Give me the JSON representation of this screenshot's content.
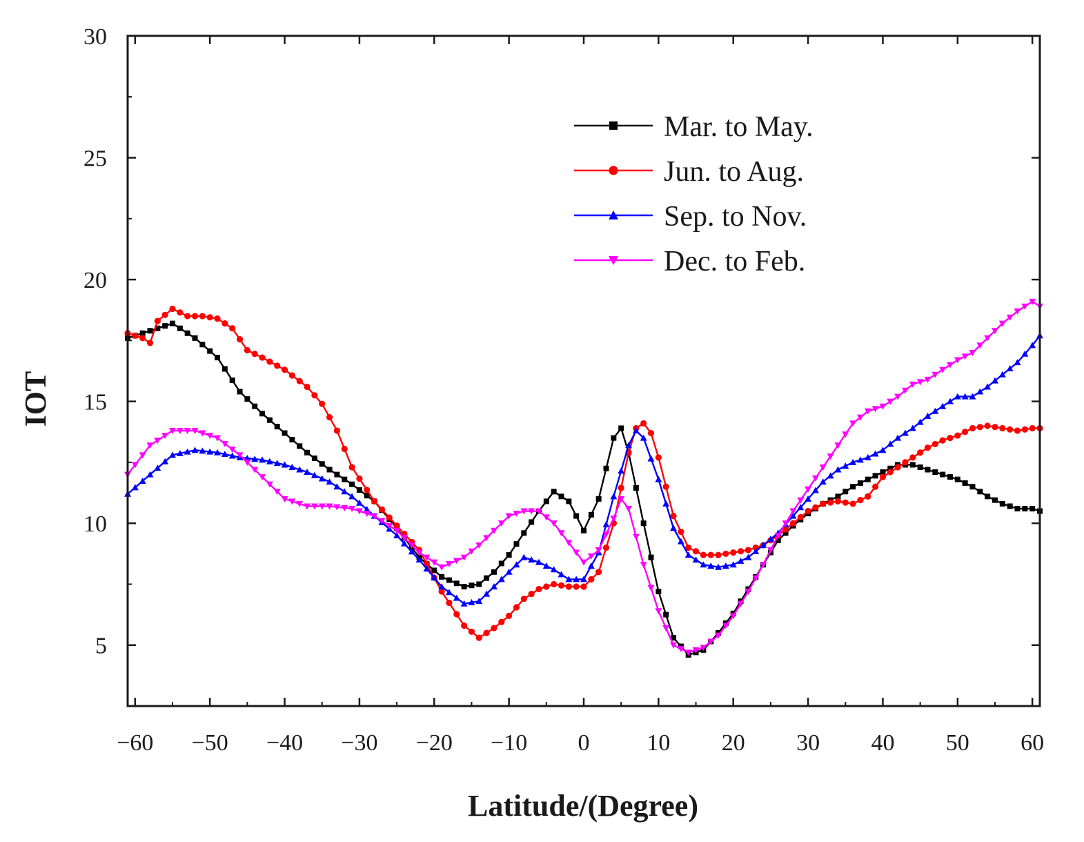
{
  "chart_data": {
    "type": "line",
    "title": "",
    "xlabel": "Latitude/(Degree)",
    "ylabel": "IOT",
    "xlim": [
      -61,
      61
    ],
    "ylim": [
      2.5,
      30
    ],
    "xticks": [
      -60,
      -50,
      -40,
      -30,
      -20,
      -10,
      0,
      10,
      20,
      30,
      40,
      50,
      60
    ],
    "xtick_labels": [
      "−60",
      "−50",
      "−40",
      "−30",
      "−20",
      "−10",
      "0",
      "10",
      "20",
      "30",
      "40",
      "50",
      "60"
    ],
    "yticks": [
      5,
      10,
      15,
      20,
      25,
      30
    ],
    "ytick_labels": [
      "5",
      "10",
      "15",
      "20",
      "25",
      "30"
    ],
    "grid": false,
    "legend_position": "top-right",
    "series": [
      {
        "name": "Mar. to May.",
        "color": "#000000",
        "marker": "square",
        "x": [
          -61,
          -58,
          -55,
          -52,
          -49,
          -46,
          -43,
          -40,
          -37,
          -34,
          -31,
          -28,
          -25,
          -22,
          -19,
          -16,
          -14,
          -12,
          -10,
          -8,
          -6,
          -4,
          -2,
          0,
          2,
          4,
          5,
          6,
          8,
          10,
          12,
          14,
          16,
          18,
          20,
          22,
          24,
          26,
          28,
          30,
          32,
          34,
          36,
          38,
          40,
          42,
          44,
          46,
          48,
          50,
          52,
          54,
          56,
          58,
          60,
          61
        ],
        "y": [
          17.6,
          17.9,
          18.2,
          17.6,
          16.8,
          15.4,
          14.5,
          13.7,
          12.9,
          12.2,
          11.6,
          10.9,
          9.8,
          8.6,
          7.8,
          7.4,
          7.5,
          8.0,
          8.7,
          9.6,
          10.5,
          11.3,
          10.9,
          9.7,
          11.0,
          13.5,
          13.9,
          12.9,
          10.0,
          7.2,
          5.3,
          4.6,
          4.8,
          5.5,
          6.3,
          7.3,
          8.3,
          9.3,
          9.9,
          10.4,
          10.8,
          11.1,
          11.5,
          11.8,
          12.1,
          12.4,
          12.4,
          12.2,
          12.0,
          11.8,
          11.5,
          11.1,
          10.8,
          10.6,
          10.6,
          10.5
        ]
      },
      {
        "name": "Jun. to Aug.",
        "color": "#ff0000",
        "marker": "circle",
        "x": [
          -61,
          -59,
          -58,
          -57,
          -55,
          -53,
          -51,
          -49,
          -47,
          -45,
          -43,
          -40,
          -37,
          -35,
          -33,
          -31,
          -28,
          -25,
          -22,
          -19,
          -16,
          -14,
          -12,
          -10,
          -8,
          -6,
          -4,
          -2,
          0,
          2,
          4,
          6,
          7,
          8,
          9,
          10,
          12,
          14,
          16,
          18,
          20,
          22,
          24,
          26,
          28,
          30,
          32,
          34,
          36,
          38,
          40,
          42,
          44,
          46,
          48,
          50,
          52,
          54,
          56,
          58,
          60,
          61
        ],
        "y": [
          17.8,
          17.6,
          17.4,
          18.3,
          18.8,
          18.5,
          18.5,
          18.4,
          18.0,
          17.1,
          16.8,
          16.3,
          15.6,
          14.9,
          13.8,
          12.3,
          10.9,
          9.9,
          8.9,
          7.2,
          5.8,
          5.3,
          5.7,
          6.2,
          6.9,
          7.3,
          7.5,
          7.4,
          7.4,
          8.0,
          10.0,
          12.9,
          13.9,
          14.1,
          13.7,
          12.7,
          10.3,
          9.0,
          8.7,
          8.7,
          8.8,
          8.9,
          9.1,
          9.5,
          10.0,
          10.5,
          10.8,
          10.9,
          10.8,
          11.1,
          11.9,
          12.3,
          12.7,
          13.1,
          13.4,
          13.6,
          13.9,
          14.0,
          13.9,
          13.8,
          13.9,
          13.9
        ]
      },
      {
        "name": "Sep. to Nov.",
        "color": "#0000ff",
        "marker": "triangle-up",
        "x": [
          -61,
          -58,
          -55,
          -52,
          -49,
          -46,
          -43,
          -40,
          -37,
          -34,
          -31,
          -28,
          -25,
          -22,
          -19,
          -16,
          -14,
          -12,
          -10,
          -8,
          -6,
          -4,
          -2,
          0,
          2,
          4,
          6,
          7,
          8,
          10,
          12,
          14,
          16,
          18,
          20,
          22,
          24,
          26,
          28,
          30,
          32,
          34,
          36,
          38,
          40,
          42,
          44,
          46,
          48,
          50,
          52,
          54,
          56,
          58,
          60,
          61
        ],
        "y": [
          11.2,
          12.0,
          12.8,
          13.0,
          12.9,
          12.7,
          12.6,
          12.4,
          12.1,
          11.7,
          11.1,
          10.3,
          9.5,
          8.5,
          7.4,
          6.7,
          6.8,
          7.4,
          8.0,
          8.6,
          8.4,
          8.1,
          7.7,
          7.7,
          8.8,
          11.1,
          13.2,
          13.8,
          13.5,
          11.8,
          9.8,
          8.7,
          8.3,
          8.2,
          8.3,
          8.6,
          9.1,
          9.6,
          10.3,
          11.0,
          11.7,
          12.2,
          12.5,
          12.7,
          13.0,
          13.5,
          13.9,
          14.4,
          14.8,
          15.2,
          15.2,
          15.6,
          16.1,
          16.6,
          17.3,
          17.7
        ]
      },
      {
        "name": "Dec. to Feb.",
        "color": "#ff00ff",
        "marker": "triangle-down",
        "x": [
          -61,
          -58,
          -55,
          -52,
          -49,
          -46,
          -43,
          -40,
          -37,
          -34,
          -31,
          -28,
          -25,
          -22,
          -19,
          -16,
          -14,
          -12,
          -10,
          -8,
          -6,
          -4,
          -2,
          0,
          2,
          4,
          5,
          6,
          8,
          10,
          12,
          14,
          16,
          18,
          20,
          22,
          24,
          26,
          28,
          30,
          32,
          34,
          36,
          38,
          40,
          42,
          44,
          46,
          48,
          50,
          52,
          54,
          56,
          58,
          60,
          61
        ],
        "y": [
          12.0,
          13.2,
          13.8,
          13.8,
          13.5,
          12.8,
          11.9,
          11.0,
          10.7,
          10.7,
          10.6,
          10.3,
          9.7,
          8.8,
          8.2,
          8.6,
          9.1,
          9.7,
          10.3,
          10.5,
          10.5,
          10.0,
          9.2,
          8.4,
          8.9,
          10.2,
          11.0,
          10.6,
          8.3,
          6.4,
          5.0,
          4.7,
          4.9,
          5.4,
          6.2,
          7.2,
          8.3,
          9.5,
          10.5,
          11.4,
          12.3,
          13.2,
          14.1,
          14.6,
          14.8,
          15.2,
          15.7,
          15.9,
          16.3,
          16.7,
          17.0,
          17.6,
          18.2,
          18.7,
          19.1,
          18.9
        ]
      }
    ]
  }
}
